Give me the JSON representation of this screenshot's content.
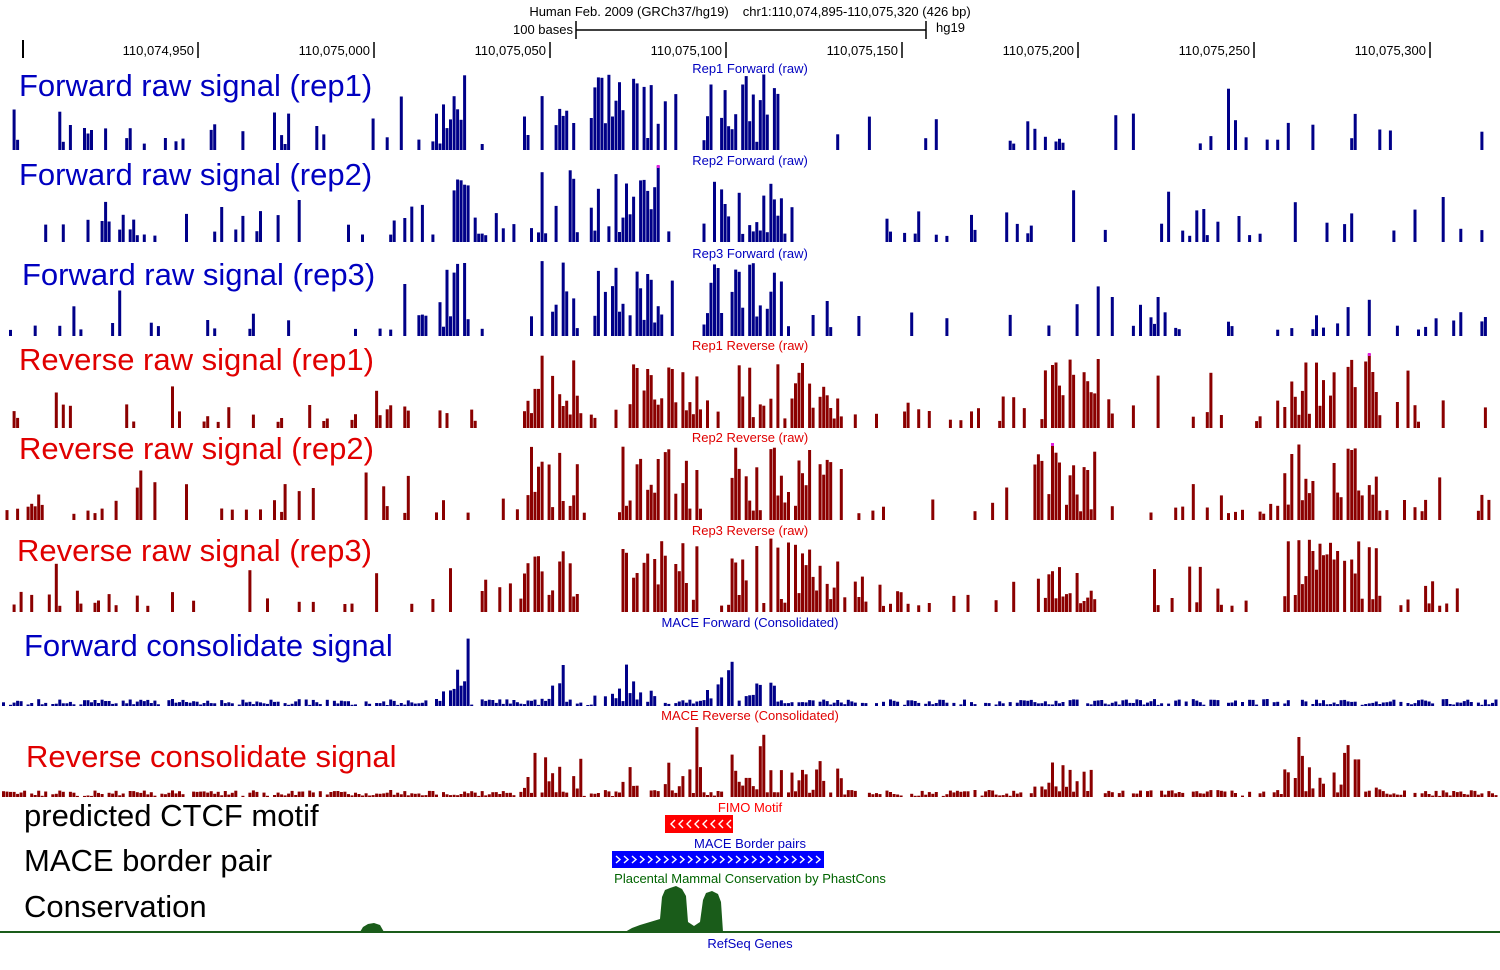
{
  "header": {
    "assembly": "Human Feb. 2009 (GRCh37/hg19)",
    "position": "chr1:110,074,895-110,075,320 (426 bp)",
    "scale_label": "100 bases",
    "db": "hg19"
  },
  "ruler": {
    "ticks": [
      "110,074,950",
      "110,075,000",
      "110,075,050",
      "110,075,100",
      "110,075,150",
      "110,075,200",
      "110,075,250",
      "110,075,300"
    ]
  },
  "colors": {
    "forward": "#0000c0",
    "forward_bar": "#000088",
    "reverse": "#e00000",
    "reverse_bar": "#8b0000",
    "clip": "#e020e0",
    "motif": "#ff0000",
    "border": "#0000ff",
    "conservation": "#1a5c1a",
    "conservation_title": "#006400"
  },
  "tracks": [
    {
      "label": "Forward raw signal (rep1)",
      "title": "Rep1 Forward (raw)",
      "strand": "forward",
      "seed": 11
    },
    {
      "label": "Forward raw signal (rep2)",
      "title": "Rep2 Forward (raw)",
      "strand": "forward",
      "seed": 23
    },
    {
      "label": "Forward raw signal (rep3)",
      "title": "Rep3 Forward (raw)",
      "strand": "forward",
      "seed": 37
    },
    {
      "label": "Reverse raw signal (rep1)",
      "title": "Rep1 Reverse (raw)",
      "strand": "reverse",
      "seed": 41
    },
    {
      "label": "Reverse raw signal (rep2)",
      "title": "Rep2 Reverse (raw)",
      "strand": "reverse",
      "seed": 53
    },
    {
      "label": "Reverse raw signal (rep3)",
      "title": "Rep3 Reverse (raw)",
      "strand": "reverse",
      "seed": 67
    },
    {
      "label": "Forward consolidate signal",
      "title": "MACE Forward (Consolidated)",
      "strand": "forward",
      "seed": 79
    },
    {
      "label": "Reverse consolidate signal",
      "title": "MACE Reverse (Consolidated)",
      "strand": "reverse",
      "seed": 83
    }
  ],
  "annotations": {
    "motif_label": "predicted CTCF motif",
    "motif_title": "FIMO Motif",
    "border_label": "MACE border pair",
    "border_title": "MACE Border pairs",
    "conservation_label": "Conservation",
    "conservation_title": "Placental Mammal Conservation by PhastCons",
    "refseq_title": "RefSeq Genes"
  }
}
